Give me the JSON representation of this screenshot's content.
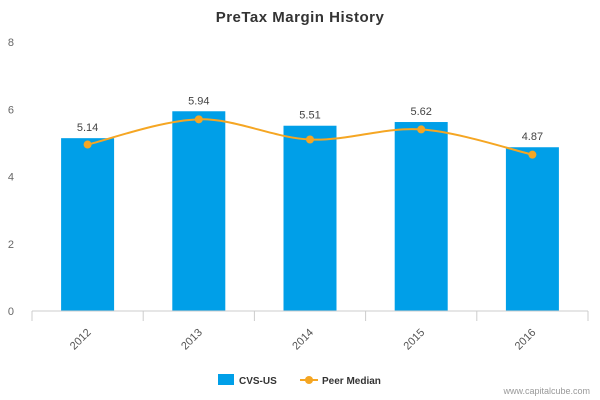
{
  "chart_data": {
    "type": "bar",
    "title": "PreTax Margin History",
    "categories": [
      "2012",
      "2013",
      "2014",
      "2015",
      "2016"
    ],
    "series": [
      {
        "name": "CVS-US",
        "type": "bar",
        "values": [
          5.14,
          5.94,
          5.51,
          5.62,
          4.87
        ],
        "color": "#009fe8"
      },
      {
        "name": "Peer Median",
        "type": "line",
        "values": [
          4.95,
          5.7,
          5.1,
          5.4,
          4.65
        ],
        "color": "#f5a623"
      }
    ],
    "data_labels": [
      "5.14",
      "5.94",
      "5.51",
      "5.62",
      "4.87"
    ],
    "y_ticks": [
      "0",
      "2",
      "4",
      "6",
      "8"
    ],
    "ylim": [
      0,
      8
    ],
    "legend_position": "bottom-center",
    "grid": false
  },
  "credit": "www.capitalcube.com"
}
